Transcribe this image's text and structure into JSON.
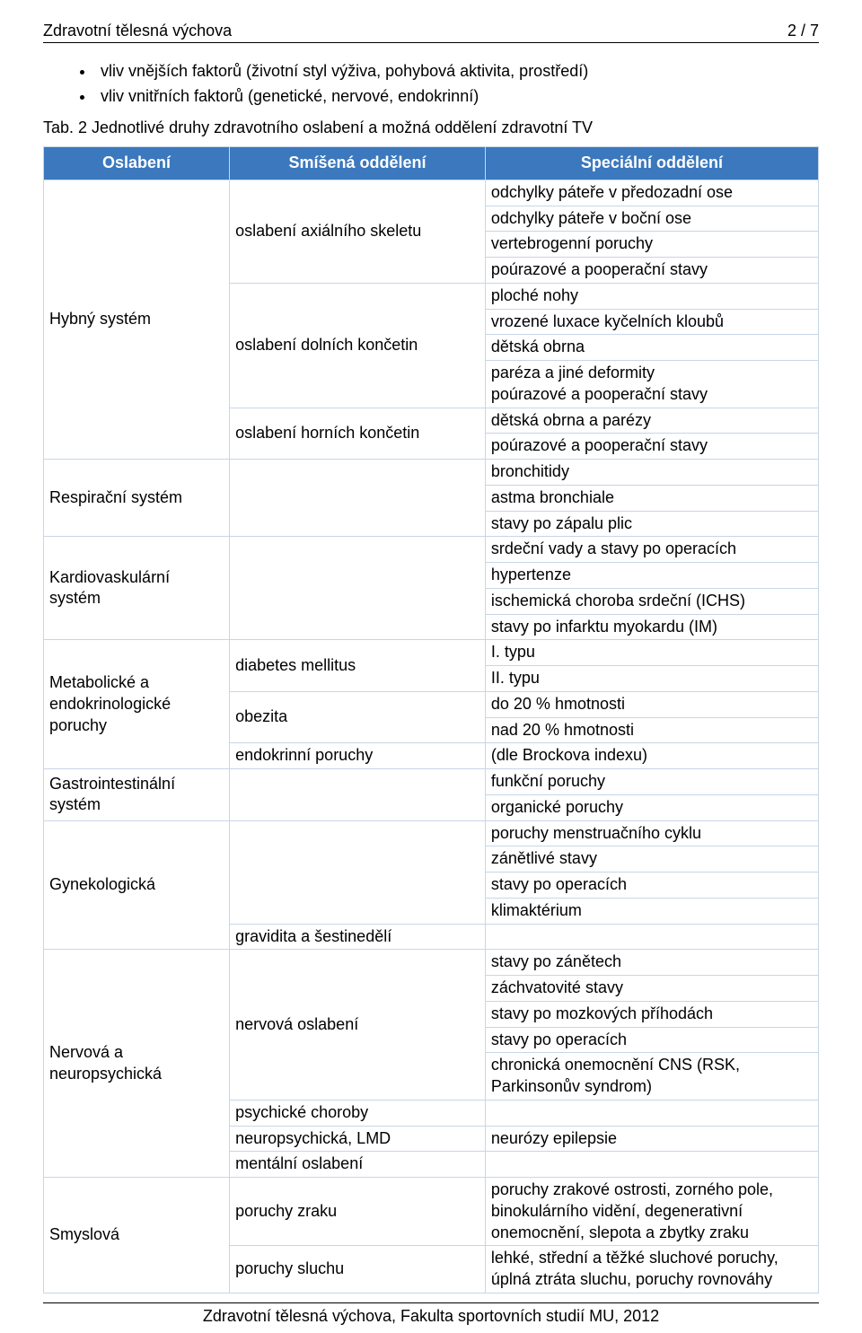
{
  "header": {
    "title_underline": "Zdravotní tělesná výchova",
    "page_num": "2 / 7"
  },
  "bullets": [
    "vliv vnějších faktorů (životní styl výživa, pohybová aktivita, prostředí)",
    "vliv vnitřních faktorů (genetické, nervové, endokrinní)"
  ],
  "tab_caption": "Tab. 2 Jednotlivé druhy zdravotního oslabení a možná oddělení zdravotní TV",
  "table": {
    "headers": [
      "Oslabení",
      "Smíšená oddělení",
      "Speciální oddělení"
    ],
    "body": [
      {
        "left": {
          "text": "Hybný systém",
          "rowspan": 10
        },
        "mid": {
          "text": "oslabení axiálního skeletu",
          "rowspan": 4
        },
        "right": "odchylky páteře v předozadní ose"
      },
      {
        "right": "odchylky páteře v boční ose"
      },
      {
        "right": "vertebrogenní poruchy"
      },
      {
        "right": "poúrazové a pooperační stavy"
      },
      {
        "mid": {
          "text": "oslabení dolních končetin",
          "rowspan": 4
        },
        "right": "ploché nohy"
      },
      {
        "right": "vrozené luxace kyčelních kloubů"
      },
      {
        "right": "dětská obrna"
      },
      {
        "right": "paréza a jiné deformity\npoúrazové a pooperační stavy"
      },
      {
        "mid": {
          "text": "oslabení horních končetin",
          "rowspan": 2
        },
        "right": "dětská obrna a parézy"
      },
      {
        "right": "poúrazové a pooperační stavy"
      },
      {
        "left": {
          "text": "Respirační systém",
          "rowspan": 3
        },
        "mid": {
          "text": "",
          "rowspan": 3
        },
        "right": "bronchitidy"
      },
      {
        "right": "astma bronchiale"
      },
      {
        "right": "stavy po zápalu plic"
      },
      {
        "left": {
          "text": "Kardiovaskulární systém",
          "rowspan": 4
        },
        "mid": {
          "text": "",
          "rowspan": 4
        },
        "right": "srdeční vady a stavy po operacích"
      },
      {
        "right": "hypertenze"
      },
      {
        "right": "ischemická choroba srdeční (ICHS)"
      },
      {
        "right": "stavy po infarktu myokardu (IM)"
      },
      {
        "left": {
          "text": "Metabolické a endokrinologické poruchy",
          "rowspan": 5
        },
        "mid": {
          "text": "diabetes mellitus",
          "rowspan": 2
        },
        "right": "I. typu"
      },
      {
        "right": "II. typu"
      },
      {
        "mid": {
          "text": "obezita",
          "rowspan": 2
        },
        "right": "do 20 % hmotnosti"
      },
      {
        "right": "nad 20 % hmotnosti"
      },
      {
        "mid": {
          "text": "endokrinní poruchy",
          "rowspan": 1
        },
        "right": "(dle Brockova indexu)"
      },
      {
        "left": {
          "text": "Gastrointestinální systém",
          "rowspan": 2
        },
        "mid": {
          "text": "",
          "rowspan": 2
        },
        "right": "funkční poruchy"
      },
      {
        "right": "organické poruchy"
      },
      {
        "left": {
          "text": "Gynekologická",
          "rowspan": 5
        },
        "mid": {
          "text": "",
          "rowspan": 4
        },
        "right": "poruchy menstruačního cyklu"
      },
      {
        "right": "zánětlivé stavy"
      },
      {
        "right": "stavy po operacích"
      },
      {
        "right": "klimaktérium"
      },
      {
        "mid": {
          "text": "gravidita a šestinedělí",
          "rowspan": 1
        },
        "right": ""
      },
      {
        "left": {
          "text": "Nervová a neuropsychická",
          "rowspan": 8
        },
        "mid": {
          "text": "nervová oslabení",
          "rowspan": 5
        },
        "right": "stavy po zánětech"
      },
      {
        "right": "záchvatovité stavy"
      },
      {
        "right": "stavy po mozkových příhodách"
      },
      {
        "right": "stavy po operacích"
      },
      {
        "right": "chronická onemocnění CNS (RSK, Parkinsonův syndrom)"
      },
      {
        "mid": {
          "text": "psychické choroby",
          "rowspan": 1
        },
        "right": ""
      },
      {
        "mid": {
          "text": "neuropsychická, LMD",
          "rowspan": 1
        },
        "right": "neurózy epilepsie"
      },
      {
        "mid": {
          "text": "mentální oslabení",
          "rowspan": 1
        },
        "right": ""
      },
      {
        "left": {
          "text": "Smyslová",
          "rowspan": 2
        },
        "mid": {
          "text": "poruchy zraku",
          "rowspan": 1
        },
        "right": "poruchy zrakové ostrosti, zorného pole, binokulárního vidění, degenerativní onemocnění, slepota a zbytky zraku"
      },
      {
        "mid": {
          "text": "poruchy sluchu",
          "rowspan": 1
        },
        "right": "lehké, střední a těžké sluchové poruchy, úplná ztráta sluchu, poruchy rovnováhy"
      }
    ]
  },
  "footer": "Zdravotní tělesná výchova, Fakulta sportovních studií MU, 2012",
  "colors": {
    "header_bg": "#3b78bd",
    "header_text": "#ffffff",
    "border": "#c7d6e8",
    "text": "#000000"
  }
}
